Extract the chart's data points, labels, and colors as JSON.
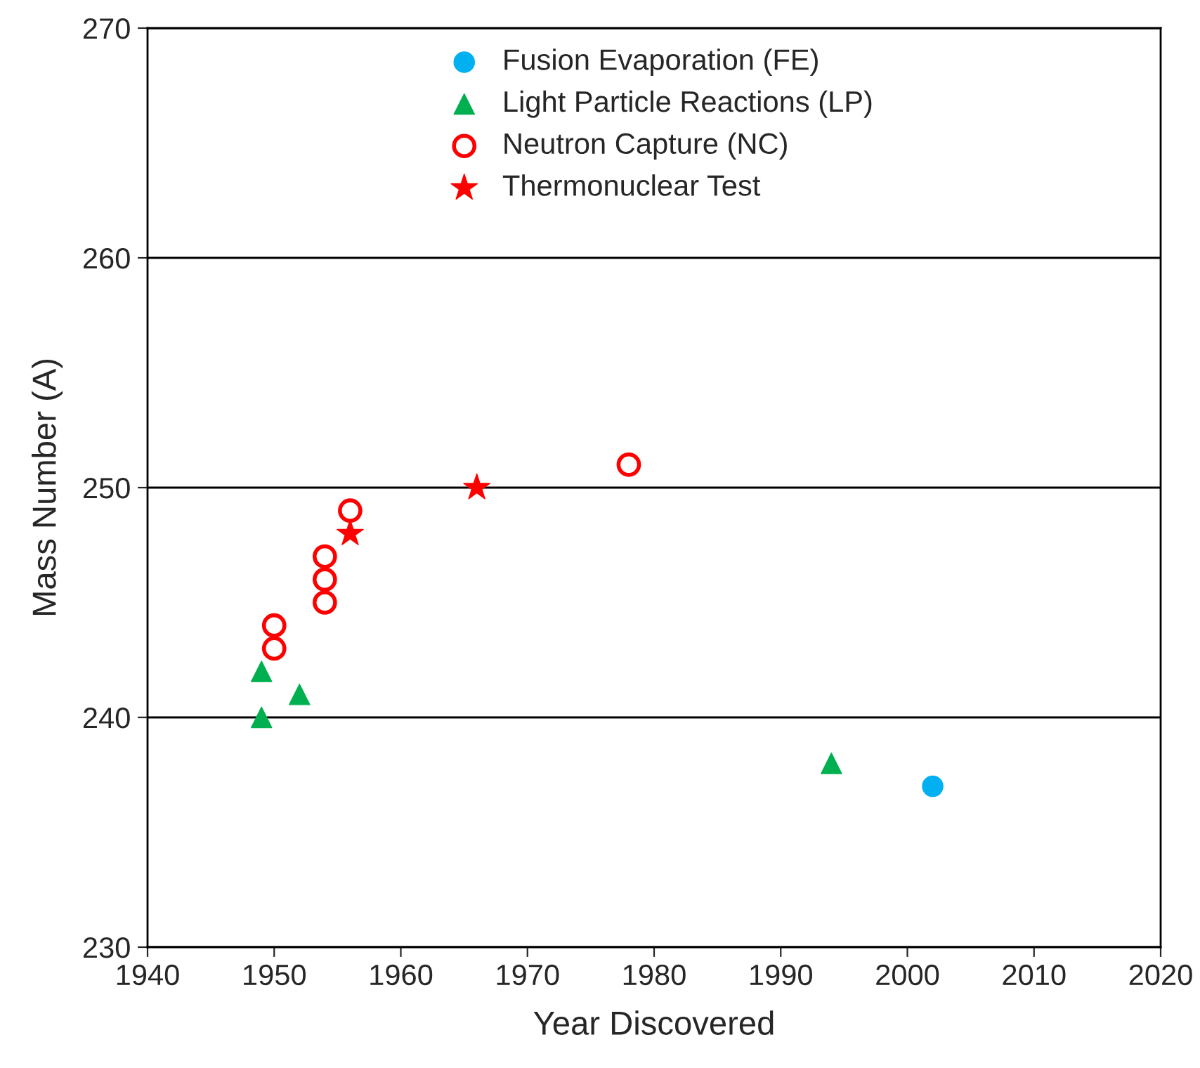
{
  "chart_data": {
    "type": "scatter",
    "xlabel": "Year Discovered",
    "ylabel": "Mass Number (A)",
    "xlim": [
      1940,
      2020
    ],
    "xticks": [
      1940,
      1950,
      1960,
      1970,
      1980,
      1990,
      2000,
      2010,
      2020
    ],
    "ylim": [
      230,
      270
    ],
    "yticks": [
      230,
      240,
      250,
      260,
      270
    ],
    "grid": "y",
    "legend": "top",
    "series": [
      {
        "name": "Fusion Evaporation (FE)",
        "color": "#00b0f0",
        "marker": "circle",
        "x": [
          2002
        ],
        "values": [
          237
        ]
      },
      {
        "name": "Light Particle Reactions (LP)",
        "color": "#00b050",
        "marker": "triangle",
        "x": [
          1949,
          1949,
          1952,
          1994
        ],
        "values": [
          242,
          240,
          241,
          238
        ]
      },
      {
        "name": "Neutron Capture (NC)",
        "color": "#ff0000",
        "marker": "circle",
        "x": [
          1950,
          1950,
          1954,
          1954,
          1954,
          1956,
          1978
        ],
        "values": [
          244,
          243,
          247,
          246,
          245,
          249,
          251
        ]
      },
      {
        "name": "Thermonuclear Test",
        "color": "#ff0000",
        "marker": "star",
        "x": [
          1956,
          1966
        ],
        "values": [
          248,
          250
        ]
      }
    ]
  }
}
